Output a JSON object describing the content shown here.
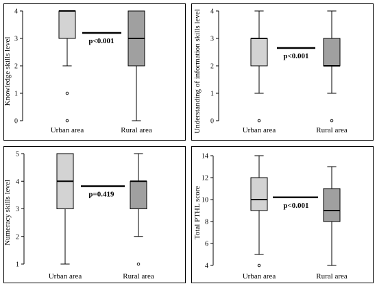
{
  "chart_data": [
    {
      "type": "boxplot",
      "ylabel": "Knowledge skills level",
      "categories": [
        "Urban area",
        "Rural area"
      ],
      "ylim": [
        0,
        4
      ],
      "yticks": [
        0,
        1,
        2,
        3,
        4
      ],
      "boxes": [
        {
          "name": "Urban area",
          "min": 2,
          "q1": 3,
          "median": 4,
          "q3": 4,
          "max": 4,
          "outliers": [
            1,
            0
          ],
          "color": "#d3d3d3"
        },
        {
          "name": "Rural area",
          "min": 0,
          "q1": 2,
          "median": 3,
          "q3": 4,
          "max": 4,
          "outliers": [],
          "color": "#a0a0a0"
        }
      ],
      "comparison": {
        "label": "p<0.001",
        "line_value": 3.2
      }
    },
    {
      "type": "boxplot",
      "ylabel": "Understanding of information skills level",
      "categories": [
        "Urban area",
        "Rural area"
      ],
      "ylim": [
        0,
        4
      ],
      "yticks": [
        0,
        1,
        2,
        3,
        4
      ],
      "boxes": [
        {
          "name": "Urban area",
          "min": 1,
          "q1": 2,
          "median": 3,
          "q3": 3,
          "max": 4,
          "outliers": [
            0
          ],
          "color": "#d3d3d3"
        },
        {
          "name": "Rural area",
          "min": 1,
          "q1": 2,
          "median": 2,
          "q3": 3,
          "max": 4,
          "outliers": [
            0
          ],
          "color": "#a0a0a0"
        }
      ],
      "comparison": {
        "label": "p<0.001",
        "line_value": 2.65
      }
    },
    {
      "type": "boxplot",
      "ylabel": "Numeracy skills level",
      "categories": [
        "Urban area",
        "Rural area"
      ],
      "ylim": [
        1,
        5
      ],
      "yticks": [
        1,
        2,
        3,
        4,
        5
      ],
      "boxes": [
        {
          "name": "Urban area",
          "min": 1,
          "q1": 3,
          "median": 4,
          "q3": 5,
          "max": 5,
          "outliers": [],
          "color": "#d3d3d3"
        },
        {
          "name": "Rural area",
          "min": 2,
          "q1": 3,
          "median": 4,
          "q3": 4,
          "max": 5,
          "outliers": [
            1
          ],
          "color": "#a0a0a0"
        }
      ],
      "comparison": {
        "label": "p=0.419",
        "line_value": 3.82
      }
    },
    {
      "type": "boxplot",
      "ylabel": "Total PTHL score",
      "categories": [
        "Urban area",
        "Rural area"
      ],
      "ylim": [
        4,
        14
      ],
      "yticks": [
        4,
        6,
        8,
        10,
        12,
        14
      ],
      "boxes": [
        {
          "name": "Urban area",
          "min": 5,
          "q1": 9,
          "median": 10,
          "q3": 12,
          "max": 14,
          "outliers": [
            4
          ],
          "color": "#d3d3d3"
        },
        {
          "name": "Rural area",
          "min": 4,
          "q1": 8,
          "median": 9,
          "q3": 11,
          "max": 13,
          "outliers": [],
          "color": "#a0a0a0"
        }
      ],
      "comparison": {
        "label": "p<0.001",
        "line_value": 10.2
      }
    }
  ]
}
